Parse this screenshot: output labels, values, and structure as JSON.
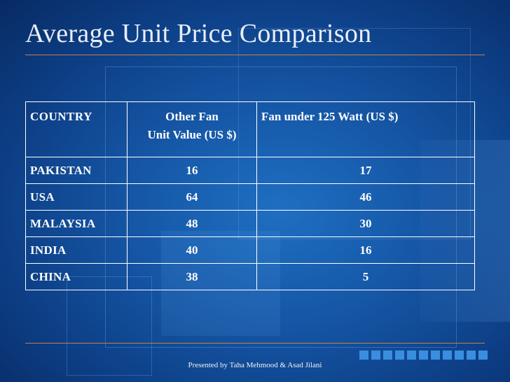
{
  "slide": {
    "title": "Average Unit Price Comparison",
    "footer": "Presented by Taha Mehmood & Asad Jilani",
    "accent_rule_color": "#d88a3a",
    "table": {
      "headers": [
        {
          "lines": [
            "COUNTRY"
          ]
        },
        {
          "lines": [
            "Other Fan",
            "Unit Value (US $)"
          ]
        },
        {
          "lines": [
            "Fan under 125 Watt (US $)"
          ]
        }
      ],
      "rows": [
        [
          "PAKISTAN",
          "16",
          "17"
        ],
        [
          "USA",
          "64",
          "46"
        ],
        [
          "MALAYSIA",
          "48",
          "30"
        ],
        [
          "INDIA",
          "40",
          "16"
        ],
        [
          "CHINA",
          "38",
          "5"
        ]
      ]
    }
  }
}
